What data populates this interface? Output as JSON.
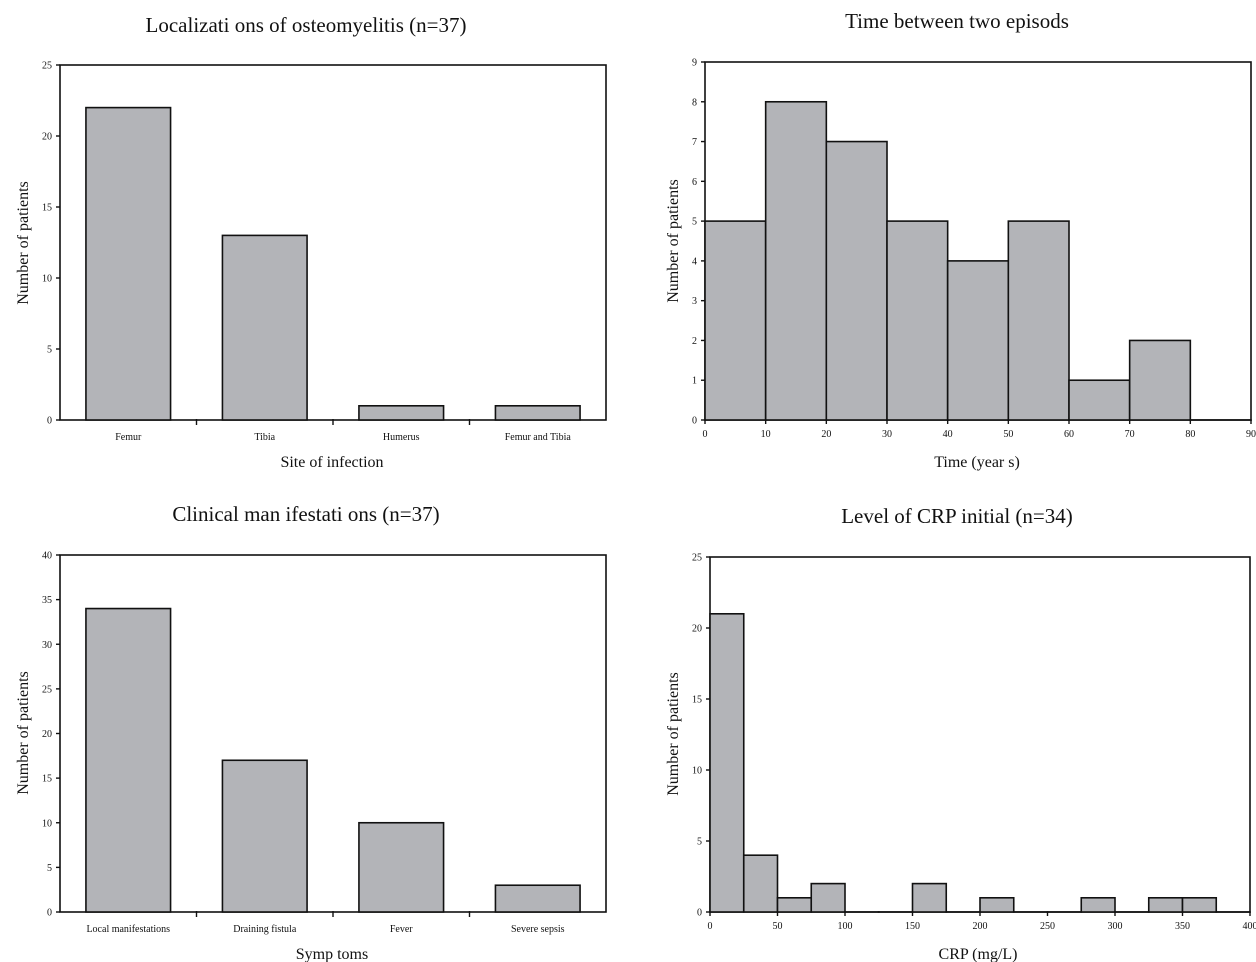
{
  "chart_data": [
    {
      "type": "bar",
      "title": "Localizati ons of osteomyelitis (n=37)",
      "xlabel": "Site of infection",
      "ylabel": "Number of patients",
      "categories": [
        "Femur",
        "Tibia",
        "Humerus",
        "Femur and Tibia"
      ],
      "values": [
        22,
        13,
        1,
        1
      ],
      "ylim": [
        0,
        25
      ],
      "yticks": [
        "0",
        "5",
        "10",
        "15",
        "20",
        "25"
      ]
    },
    {
      "type": "bar",
      "subtype": "histogram",
      "title": "Time between two episods",
      "xlabel": "Time (year s)",
      "ylabel": "Number of patients",
      "bins": [
        [
          0,
          10
        ],
        [
          10,
          20
        ],
        [
          20,
          30
        ],
        [
          30,
          40
        ],
        [
          40,
          50
        ],
        [
          50,
          60
        ],
        [
          60,
          70
        ],
        [
          70,
          80
        ],
        [
          80,
          90
        ]
      ],
      "values": [
        5,
        8,
        7,
        5,
        4,
        5,
        1,
        2,
        0
      ],
      "xlim": [
        0,
        90
      ],
      "ylim": [
        0,
        9
      ],
      "xticks": [
        "0",
        "10",
        "20",
        "30",
        "40",
        "50",
        "60",
        "70",
        "80",
        "90"
      ],
      "yticks": [
        "0",
        "1",
        "2",
        "3",
        "4",
        "5",
        "6",
        "7",
        "8",
        "9"
      ]
    },
    {
      "type": "bar",
      "title": "Clinical man ifestati ons (n=37)",
      "xlabel": "Symp toms",
      "ylabel": "Number of patients",
      "categories": [
        "Local manifestations",
        "Draining fistula",
        "Fever",
        "Severe sepsis"
      ],
      "values": [
        34,
        17,
        10,
        3
      ],
      "ylim": [
        0,
        40
      ],
      "yticks": [
        "0",
        "5",
        "10",
        "15",
        "20",
        "25",
        "30",
        "35",
        "40"
      ]
    },
    {
      "type": "bar",
      "subtype": "histogram",
      "title": "Level of CRP initial (n=34)",
      "xlabel": "CRP (mg/L)",
      "ylabel": "Number of patients",
      "bins": [
        [
          0,
          25
        ],
        [
          25,
          50
        ],
        [
          50,
          75
        ],
        [
          75,
          100
        ],
        [
          100,
          125
        ],
        [
          125,
          150
        ],
        [
          150,
          175
        ],
        [
          175,
          200
        ],
        [
          200,
          225
        ],
        [
          225,
          250
        ],
        [
          250,
          275
        ],
        [
          275,
          300
        ],
        [
          300,
          325
        ],
        [
          325,
          350
        ],
        [
          350,
          375
        ],
        [
          375,
          400
        ]
      ],
      "values": [
        21,
        4,
        1,
        2,
        0,
        0,
        2,
        0,
        1,
        0,
        0,
        1,
        0,
        1,
        1,
        0
      ],
      "xlim": [
        0,
        400
      ],
      "ylim": [
        0,
        25
      ],
      "xticks": [
        "0",
        "50",
        "100",
        "150",
        "200",
        "250",
        "300",
        "350",
        "400"
      ],
      "yticks": [
        "0",
        "5",
        "10",
        "15",
        "20",
        "25"
      ]
    }
  ]
}
